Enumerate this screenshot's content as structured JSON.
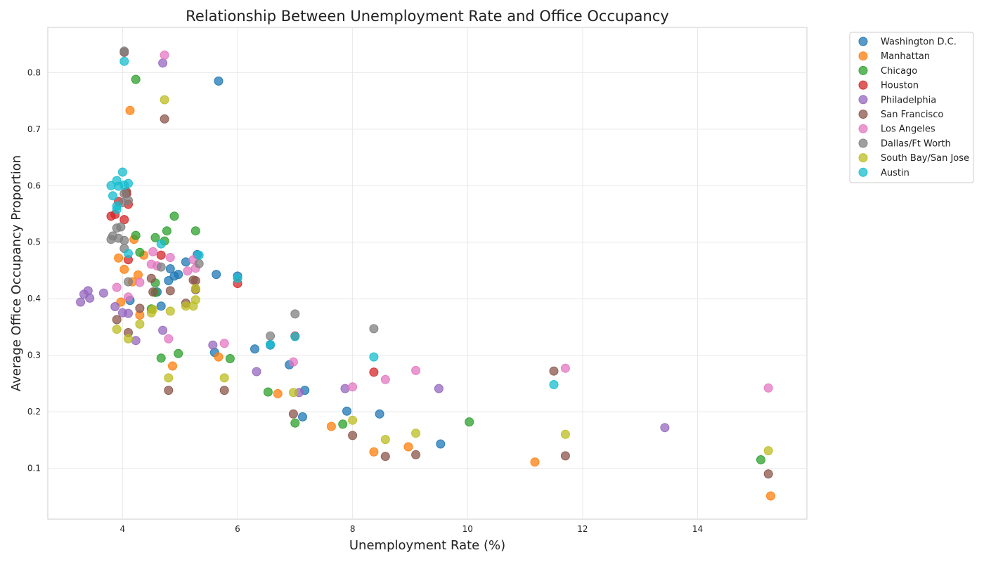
{
  "chart_data": {
    "type": "scatter",
    "title": "Relationship Between Unemployment Rate and Office Occupancy",
    "xlabel": "Unemployment Rate (%)",
    "ylabel": "Average Office Occupancy Proportion",
    "xlim": [
      2.7,
      15.9
    ],
    "ylim": [
      0.01,
      0.88
    ],
    "xticks": [
      4,
      6,
      8,
      10,
      12,
      14
    ],
    "yticks": [
      0.1,
      0.2,
      0.3,
      0.4,
      0.5,
      0.6,
      0.7,
      0.8
    ],
    "grid": true,
    "legend_position": "outside-top-right",
    "series": [
      {
        "name": "Washington D.C.",
        "color": "#1f77b4",
        "points": [
          [
            5.67,
            0.785
          ],
          [
            5.63,
            0.443
          ],
          [
            5.1,
            0.465
          ],
          [
            5.3,
            0.478
          ],
          [
            4.83,
            0.453
          ],
          [
            4.97,
            0.443
          ],
          [
            4.9,
            0.44
          ],
          [
            4.8,
            0.432
          ],
          [
            4.6,
            0.412
          ],
          [
            4.67,
            0.387
          ],
          [
            4.13,
            0.397
          ],
          [
            6.0,
            0.44
          ],
          [
            6.57,
            0.318
          ],
          [
            6.3,
            0.311
          ],
          [
            5.6,
            0.305
          ],
          [
            6.9,
            0.283
          ],
          [
            7.17,
            0.238
          ],
          [
            7.9,
            0.201
          ],
          [
            8.47,
            0.196
          ],
          [
            7.13,
            0.191
          ],
          [
            9.53,
            0.143
          ]
        ]
      },
      {
        "name": "Manhattan",
        "color": "#ff7f0e",
        "points": [
          [
            4.13,
            0.733
          ],
          [
            4.2,
            0.505
          ],
          [
            4.37,
            0.477
          ],
          [
            3.93,
            0.472
          ],
          [
            4.03,
            0.452
          ],
          [
            4.27,
            0.442
          ],
          [
            4.17,
            0.43
          ],
          [
            3.97,
            0.394
          ],
          [
            4.3,
            0.371
          ],
          [
            4.87,
            0.281
          ],
          [
            5.67,
            0.297
          ],
          [
            6.7,
            0.232
          ],
          [
            7.63,
            0.174
          ],
          [
            8.37,
            0.129
          ],
          [
            8.97,
            0.138
          ],
          [
            11.17,
            0.111
          ],
          [
            15.27,
            0.051
          ]
        ]
      },
      {
        "name": "Chicago",
        "color": "#2ca02c",
        "points": [
          [
            4.23,
            0.788
          ],
          [
            4.9,
            0.546
          ],
          [
            4.77,
            0.52
          ],
          [
            5.27,
            0.52
          ],
          [
            4.23,
            0.512
          ],
          [
            4.57,
            0.508
          ],
          [
            4.73,
            0.502
          ],
          [
            4.3,
            0.482
          ],
          [
            4.57,
            0.428
          ],
          [
            4.5,
            0.382
          ],
          [
            4.57,
            0.411
          ],
          [
            4.67,
            0.295
          ],
          [
            4.97,
            0.303
          ],
          [
            5.87,
            0.294
          ],
          [
            6.53,
            0.235
          ],
          [
            7.0,
            0.18
          ],
          [
            7.83,
            0.178
          ],
          [
            10.03,
            0.182
          ],
          [
            15.1,
            0.115
          ]
        ]
      },
      {
        "name": "Houston",
        "color": "#d62728",
        "points": [
          [
            3.8,
            0.546
          ],
          [
            3.87,
            0.549
          ],
          [
            4.03,
            0.54
          ],
          [
            4.1,
            0.567
          ],
          [
            3.93,
            0.572
          ],
          [
            4.07,
            0.586
          ],
          [
            4.67,
            0.477
          ],
          [
            4.1,
            0.469
          ],
          [
            6.0,
            0.427
          ],
          [
            7.0,
            0.334
          ],
          [
            8.37,
            0.27
          ]
        ]
      },
      {
        "name": "Philadelphia",
        "color": "#9467bd",
        "points": [
          [
            4.7,
            0.817
          ],
          [
            3.4,
            0.414
          ],
          [
            3.33,
            0.408
          ],
          [
            3.43,
            0.401
          ],
          [
            3.27,
            0.394
          ],
          [
            3.67,
            0.41
          ],
          [
            3.87,
            0.386
          ],
          [
            4.0,
            0.375
          ],
          [
            4.1,
            0.374
          ],
          [
            4.23,
            0.326
          ],
          [
            4.7,
            0.344
          ],
          [
            5.57,
            0.318
          ],
          [
            6.33,
            0.271
          ],
          [
            7.07,
            0.234
          ],
          [
            7.87,
            0.241
          ],
          [
            9.5,
            0.241
          ],
          [
            13.43,
            0.172
          ]
        ]
      },
      {
        "name": "San Francisco",
        "color": "#8c564b",
        "points": [
          [
            4.03,
            0.836
          ],
          [
            4.73,
            0.718
          ],
          [
            4.07,
            0.589
          ],
          [
            4.5,
            0.436
          ],
          [
            4.53,
            0.412
          ],
          [
            4.83,
            0.414
          ],
          [
            5.23,
            0.433
          ],
          [
            5.27,
            0.432
          ],
          [
            5.27,
            0.416
          ],
          [
            5.1,
            0.392
          ],
          [
            4.3,
            0.383
          ],
          [
            3.9,
            0.363
          ],
          [
            4.1,
            0.34
          ],
          [
            4.8,
            0.238
          ],
          [
            5.77,
            0.238
          ],
          [
            6.97,
            0.196
          ],
          [
            8.0,
            0.158
          ],
          [
            8.57,
            0.121
          ],
          [
            9.1,
            0.124
          ],
          [
            11.5,
            0.272
          ],
          [
            11.7,
            0.122
          ],
          [
            15.23,
            0.09
          ]
        ]
      },
      {
        "name": "Los Angeles",
        "color": "#e377c2",
        "points": [
          [
            4.73,
            0.831
          ],
          [
            4.53,
            0.483
          ],
          [
            4.83,
            0.473
          ],
          [
            5.23,
            0.469
          ],
          [
            5.27,
            0.454
          ],
          [
            5.13,
            0.449
          ],
          [
            4.5,
            0.461
          ],
          [
            4.6,
            0.458
          ],
          [
            3.9,
            0.42
          ],
          [
            4.1,
            0.403
          ],
          [
            4.3,
            0.429
          ],
          [
            4.8,
            0.329
          ],
          [
            5.77,
            0.321
          ],
          [
            6.97,
            0.288
          ],
          [
            8.0,
            0.244
          ],
          [
            8.57,
            0.257
          ],
          [
            9.1,
            0.273
          ],
          [
            11.7,
            0.277
          ],
          [
            15.23,
            0.242
          ]
        ]
      },
      {
        "name": "Dallas/Ft Worth",
        "color": "#7f7f7f",
        "points": [
          [
            4.03,
            0.838
          ],
          [
            4.03,
            0.586
          ],
          [
            4.1,
            0.574
          ],
          [
            4.0,
            0.57
          ],
          [
            3.97,
            0.527
          ],
          [
            3.9,
            0.525
          ],
          [
            3.83,
            0.511
          ],
          [
            3.8,
            0.505
          ],
          [
            3.93,
            0.507
          ],
          [
            4.03,
            0.503
          ],
          [
            4.03,
            0.489
          ],
          [
            4.67,
            0.456
          ],
          [
            5.33,
            0.462
          ],
          [
            4.1,
            0.43
          ],
          [
            7.0,
            0.373
          ],
          [
            6.57,
            0.334
          ],
          [
            8.37,
            0.347
          ]
        ]
      },
      {
        "name": "South Bay/San Jose",
        "color": "#bcbd22",
        "points": [
          [
            4.73,
            0.752
          ],
          [
            5.27,
            0.418
          ],
          [
            5.27,
            0.398
          ],
          [
            5.23,
            0.387
          ],
          [
            5.1,
            0.387
          ],
          [
            4.83,
            0.378
          ],
          [
            4.53,
            0.381
          ],
          [
            4.5,
            0.375
          ],
          [
            4.3,
            0.355
          ],
          [
            3.9,
            0.346
          ],
          [
            4.1,
            0.329
          ],
          [
            4.8,
            0.26
          ],
          [
            5.77,
            0.26
          ],
          [
            6.97,
            0.234
          ],
          [
            8.0,
            0.185
          ],
          [
            8.57,
            0.151
          ],
          [
            9.1,
            0.162
          ],
          [
            11.7,
            0.16
          ],
          [
            15.23,
            0.131
          ]
        ]
      },
      {
        "name": "Austin",
        "color": "#17becf",
        "points": [
          [
            4.03,
            0.82
          ],
          [
            4.0,
            0.624
          ],
          [
            3.9,
            0.609
          ],
          [
            3.8,
            0.6
          ],
          [
            4.1,
            0.604
          ],
          [
            4.03,
            0.601
          ],
          [
            3.93,
            0.599
          ],
          [
            3.83,
            0.582
          ],
          [
            3.9,
            0.564
          ],
          [
            3.9,
            0.558
          ],
          [
            4.1,
            0.48
          ],
          [
            4.67,
            0.497
          ],
          [
            5.33,
            0.477
          ],
          [
            6.0,
            0.436
          ],
          [
            6.57,
            0.319
          ],
          [
            7.0,
            0.333
          ],
          [
            8.37,
            0.297
          ],
          [
            11.5,
            0.248
          ]
        ]
      }
    ]
  }
}
